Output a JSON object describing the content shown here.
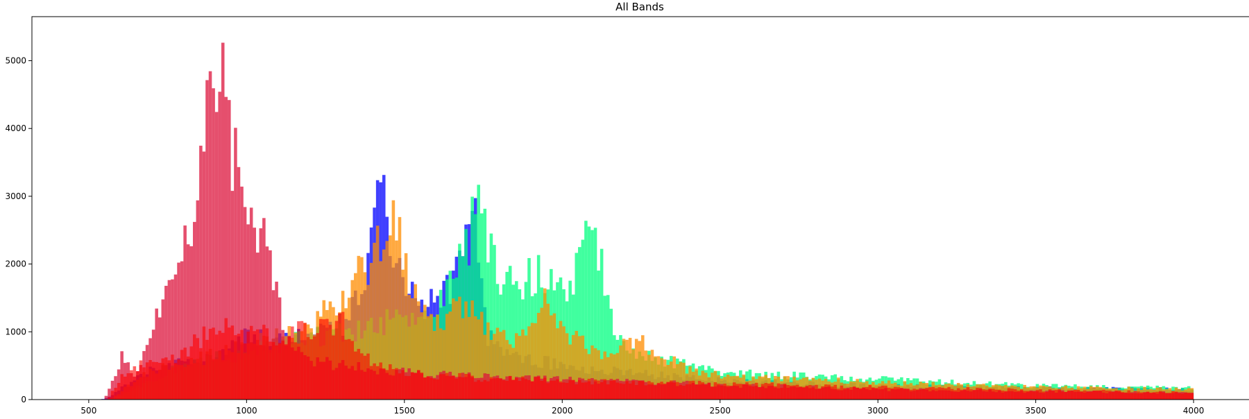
{
  "chart_data": {
    "type": "histogram",
    "title": "All Bands",
    "xlabel": "",
    "ylabel": "",
    "xlim": [
      320,
      4180
    ],
    "ylim": [
      0,
      5650
    ],
    "x_ticks": [
      500,
      1000,
      1500,
      2000,
      2500,
      3000,
      3500,
      4000
    ],
    "y_ticks": [
      0,
      1000,
      2000,
      3000,
      4000,
      5000
    ],
    "grid": false,
    "legend": "none",
    "bin_range": [
      500,
      4000
    ],
    "bin_width": 10,
    "series": [
      {
        "color": "#0000ff",
        "opacity": 0.75,
        "profile": [
          [
            540,
            0
          ],
          [
            560,
            30
          ],
          [
            600,
            150
          ],
          [
            650,
            300
          ],
          [
            700,
            450
          ],
          [
            800,
            550
          ],
          [
            900,
            700
          ],
          [
            1000,
            900
          ],
          [
            1100,
            950
          ],
          [
            1200,
            1000
          ],
          [
            1300,
            1100
          ],
          [
            1350,
            1500
          ],
          [
            1400,
            2300
          ],
          [
            1420,
            3400
          ],
          [
            1440,
            2800
          ],
          [
            1460,
            2200
          ],
          [
            1500,
            1600
          ],
          [
            1550,
            1400
          ],
          [
            1600,
            1500
          ],
          [
            1650,
            1600
          ],
          [
            1700,
            2500
          ],
          [
            1710,
            3400
          ],
          [
            1730,
            2300
          ],
          [
            1760,
            1000
          ],
          [
            1800,
            700
          ],
          [
            1900,
            600
          ],
          [
            2000,
            500
          ],
          [
            2200,
            400
          ],
          [
            2500,
            280
          ],
          [
            3000,
            200
          ],
          [
            3500,
            170
          ],
          [
            4000,
            150
          ]
        ]
      },
      {
        "color": "#00ff7f",
        "opacity": 0.75,
        "profile": [
          [
            580,
            0
          ],
          [
            620,
            100
          ],
          [
            700,
            300
          ],
          [
            800,
            500
          ],
          [
            900,
            600
          ],
          [
            1000,
            700
          ],
          [
            1100,
            800
          ],
          [
            1200,
            900
          ],
          [
            1300,
            1000
          ],
          [
            1400,
            1100
          ],
          [
            1500,
            1200
          ],
          [
            1600,
            1400
          ],
          [
            1650,
            1700
          ],
          [
            1700,
            2200
          ],
          [
            1730,
            3100
          ],
          [
            1760,
            2400
          ],
          [
            1800,
            1800
          ],
          [
            1850,
            1700
          ],
          [
            1900,
            1850
          ],
          [
            1950,
            1800
          ],
          [
            2000,
            1500
          ],
          [
            2050,
            2000
          ],
          [
            2080,
            2500
          ],
          [
            2100,
            2300
          ],
          [
            2150,
            1500
          ],
          [
            2170,
            1000
          ],
          [
            2200,
            800
          ],
          [
            2300,
            600
          ],
          [
            2400,
            500
          ],
          [
            2500,
            400
          ],
          [
            3000,
            300
          ],
          [
            3500,
            200
          ],
          [
            4000,
            170
          ]
        ]
      },
      {
        "color": "#ff8c00",
        "opacity": 0.75,
        "profile": [
          [
            570,
            0
          ],
          [
            600,
            100
          ],
          [
            650,
            300
          ],
          [
            700,
            450
          ],
          [
            800,
            550
          ],
          [
            900,
            650
          ],
          [
            1000,
            800
          ],
          [
            1100,
            900
          ],
          [
            1200,
            1000
          ],
          [
            1250,
            1300
          ],
          [
            1300,
            1500
          ],
          [
            1350,
            1800
          ],
          [
            1400,
            2100
          ],
          [
            1440,
            2600
          ],
          [
            1460,
            2900
          ],
          [
            1500,
            2000
          ],
          [
            1550,
            1400
          ],
          [
            1600,
            1200
          ],
          [
            1650,
            1300
          ],
          [
            1700,
            1400
          ],
          [
            1750,
            1100
          ],
          [
            1800,
            900
          ],
          [
            1850,
            900
          ],
          [
            1900,
            1200
          ],
          [
            1950,
            1500
          ],
          [
            2000,
            1000
          ],
          [
            2100,
            700
          ],
          [
            2200,
            800
          ],
          [
            2250,
            900
          ],
          [
            2300,
            700
          ],
          [
            2400,
            450
          ],
          [
            2500,
            350
          ],
          [
            3000,
            250
          ],
          [
            3500,
            180
          ],
          [
            4000,
            150
          ]
        ]
      },
      {
        "color": "#dc143c",
        "opacity": 0.75,
        "profile": [
          [
            550,
            0
          ],
          [
            570,
            200
          ],
          [
            600,
            600
          ],
          [
            620,
            650
          ],
          [
            650,
            300
          ],
          [
            670,
            600
          ],
          [
            700,
            1000
          ],
          [
            750,
            1500
          ],
          [
            800,
            2100
          ],
          [
            850,
            3000
          ],
          [
            880,
            4400
          ],
          [
            900,
            5300
          ],
          [
            920,
            4800
          ],
          [
            950,
            3800
          ],
          [
            1000,
            2900
          ],
          [
            1050,
            2400
          ],
          [
            1080,
            2000
          ],
          [
            1100,
            1500
          ],
          [
            1120,
            1000
          ],
          [
            1150,
            700
          ],
          [
            1200,
            600
          ],
          [
            1300,
            500
          ],
          [
            1400,
            450
          ],
          [
            1500,
            400
          ],
          [
            1700,
            350
          ],
          [
            2000,
            300
          ],
          [
            2500,
            220
          ],
          [
            3000,
            150
          ],
          [
            3500,
            120
          ],
          [
            4000,
            100
          ]
        ]
      },
      {
        "color": "#ff0000",
        "opacity": 0.6,
        "profile": [
          [
            560,
            0
          ],
          [
            600,
            300
          ],
          [
            650,
            500
          ],
          [
            700,
            500
          ],
          [
            750,
            600
          ],
          [
            800,
            700
          ],
          [
            850,
            900
          ],
          [
            900,
            1000
          ],
          [
            950,
            1050
          ],
          [
            1000,
            1000
          ],
          [
            1100,
            950
          ],
          [
            1200,
            1000
          ],
          [
            1280,
            1100
          ],
          [
            1300,
            1200
          ],
          [
            1320,
            1000
          ],
          [
            1350,
            700
          ],
          [
            1400,
            550
          ],
          [
            1500,
            400
          ],
          [
            1600,
            350
          ],
          [
            1800,
            300
          ],
          [
            2000,
            280
          ],
          [
            2500,
            230
          ],
          [
            3000,
            180
          ],
          [
            3500,
            140
          ],
          [
            4000,
            100
          ]
        ]
      }
    ]
  }
}
